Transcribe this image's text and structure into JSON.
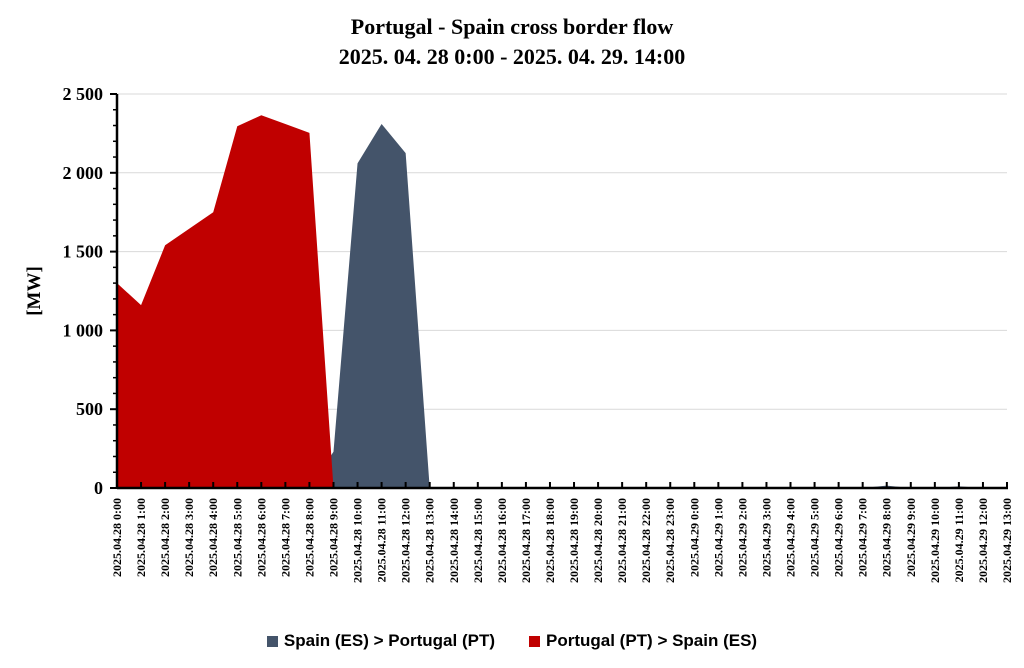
{
  "chart_data": {
    "type": "area",
    "title": [
      "Portugal - Spain cross border flow",
      "2025. 04. 28 0:00 - 2025. 04. 29. 14:00"
    ],
    "ylabel": "[MW]",
    "xlabel": "",
    "ylim": [
      0,
      2500
    ],
    "yticks": [
      0,
      500,
      1000,
      1500,
      2000,
      2500
    ],
    "ytick_labels": [
      "0",
      "500",
      "1 000",
      "1 500",
      "2 000",
      "2 500"
    ],
    "grid": true,
    "legend_position": "bottom",
    "categories": [
      "2025.04.28 0:00",
      "2025.04.28 1:00",
      "2025.04.28 2:00",
      "2025.04.28 3:00",
      "2025.04.28 4:00",
      "2025.04.28 5:00",
      "2025.04.28 6:00",
      "2025.04.28 7:00",
      "2025.04.28 8:00",
      "2025.04.28 9:00",
      "2025.04.28 10:00",
      "2025.04.28 11:00",
      "2025.04.28 12:00",
      "2025.04.28 13:00",
      "2025.04.28 14:00",
      "2025.04.28 15:00",
      "2025.04.28 16:00",
      "2025.04.28 17:00",
      "2025.04.28 18:00",
      "2025.04.28 19:00",
      "2025.04.28 20:00",
      "2025.04.28 21:00",
      "2025.04.28 22:00",
      "2025.04.28 23:00",
      "2025.04.29 0:00",
      "2025.04.29 1:00",
      "2025.04.29 2:00",
      "2025.04.29 3:00",
      "2025.04.29 4:00",
      "2025.04.29 5:00",
      "2025.04.29 6:00",
      "2025.04.29 7:00",
      "2025.04.29 8:00",
      "2025.04.29 9:00",
      "2025.04.29 10:00",
      "2025.04.29 11:00",
      "2025.04.29 12:00",
      "2025.04.29 13:00"
    ],
    "series": [
      {
        "name": "Spain (ES) > Portugal (PT)",
        "color": "#44546a",
        "values": [
          0,
          0,
          0,
          0,
          0,
          0,
          0,
          0,
          0,
          230,
          2060,
          2310,
          2125,
          0,
          0,
          0,
          0,
          0,
          0,
          0,
          0,
          0,
          0,
          0,
          0,
          0,
          0,
          0,
          0,
          0,
          0,
          0,
          15,
          0,
          0,
          10,
          0,
          0
        ]
      },
      {
        "name": "Portugal (PT) > Spain (ES)",
        "color": "#c00000",
        "values": [
          1300,
          1160,
          1540,
          1645,
          1750,
          2295,
          2365,
          2310,
          2253,
          0,
          0,
          0,
          0,
          0,
          0,
          0,
          0,
          0,
          0,
          0,
          0,
          0,
          0,
          0,
          0,
          0,
          0,
          0,
          0,
          0,
          0,
          0,
          0,
          0,
          0,
          0,
          0,
          0
        ]
      }
    ]
  }
}
